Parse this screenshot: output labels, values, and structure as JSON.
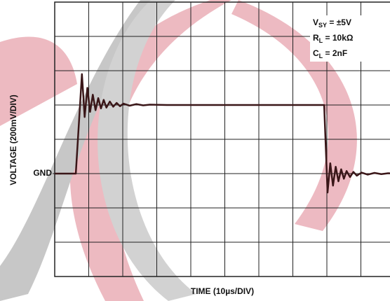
{
  "chart_data": {
    "type": "line",
    "x_label": "TIME (10µs/DIV)",
    "y_label": "VOLTAGE (200mV/DIV)",
    "annotations": [
      {
        "main": "V",
        "sub": "SY",
        "rest": " = ±5V"
      },
      {
        "main": "R",
        "sub": "L",
        "rest": " = 10kΩ"
      },
      {
        "main": "C",
        "sub": "L",
        "rest": " = 2nF"
      }
    ],
    "xlim": [
      0,
      100
    ],
    "ylim": [
      -600,
      1000
    ],
    "yticks": [
      {
        "value": 0,
        "label": "GND"
      }
    ],
    "xgrid": [
      10,
      20,
      30,
      40,
      50,
      60,
      70,
      80,
      90
    ],
    "ygrid": [
      -400,
      -200,
      0,
      200,
      400,
      600,
      800
    ],
    "grid": true,
    "series": [
      {
        "color": "#3a1618",
        "x": [
          0,
          6.2,
          8.0,
          8.8,
          9.6,
          10.4,
          11.2,
          12.0,
          12.8,
          13.6,
          14.4,
          15.2,
          16.2,
          17.2,
          18.2,
          19.2,
          20.2,
          22,
          24,
          26,
          28,
          33,
          79.2,
          80.2,
          81.0,
          81.8,
          82.6,
          83.4,
          84.2,
          85.0,
          85.8,
          86.8,
          87.8,
          88.8,
          90.2,
          92,
          94,
          96,
          98,
          100
        ],
        "values": [
          0,
          0,
          580,
          330,
          500,
          360,
          460,
          370,
          440,
          380,
          430,
          385,
          420,
          390,
          412,
          393,
          408,
          396,
          405,
          398,
          402,
          400,
          400,
          -110,
          60,
          -70,
          40,
          -45,
          25,
          -30,
          15,
          -20,
          10,
          -12,
          6,
          -6,
          4,
          -3,
          2,
          0
        ]
      }
    ]
  }
}
